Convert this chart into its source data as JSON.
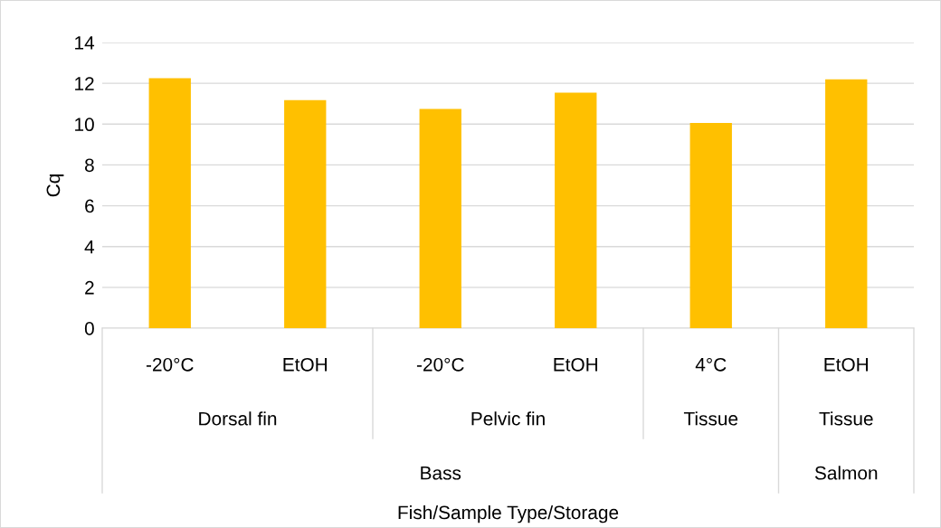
{
  "chart_data": {
    "type": "bar",
    "categories": [
      "-20°C",
      "EtOH",
      "-20°C",
      "EtOH",
      "4°C",
      "EtOH"
    ],
    "values": [
      12.25,
      11.18,
      10.74,
      11.54,
      10.06,
      12.19
    ],
    "color": "#ffc000",
    "ylim": [
      0,
      14
    ],
    "yticks": [
      0,
      2,
      4,
      6,
      8,
      10,
      12,
      14
    ],
    "grid": "y",
    "ylabel": "Cq",
    "annotations": [
      "Dorsal fin",
      "Pelvic fin",
      "Tissue",
      "Tissue",
      "Bass",
      "Salmon",
      "Fish/Sample Type/Storage"
    ]
  }
}
